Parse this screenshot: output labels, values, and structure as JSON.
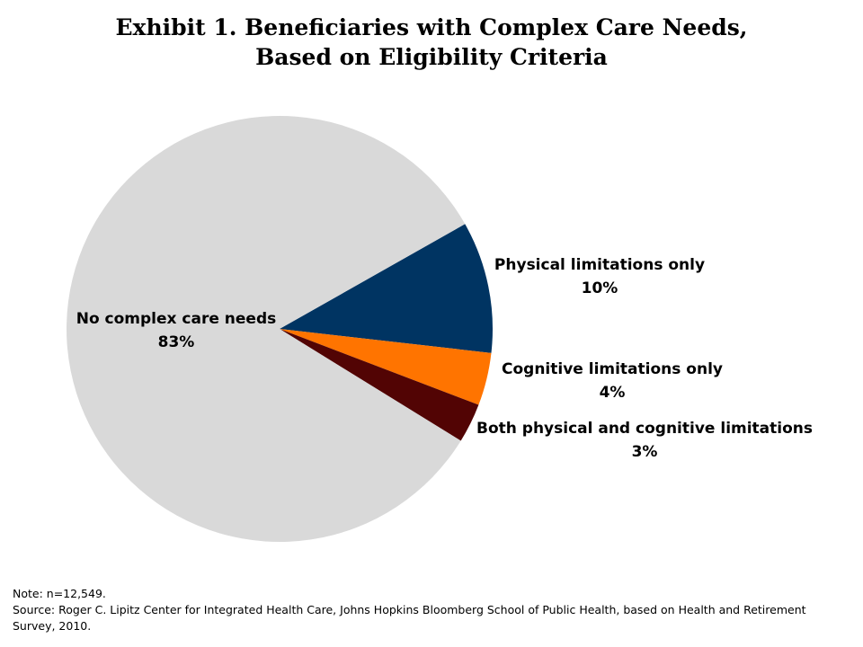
{
  "chart_data": {
    "type": "pie",
    "title": [
      "Exhibit 1. Beneficiaries with Complex Care Needs,",
      "Based on Eligibility Criteria"
    ],
    "slices": [
      {
        "label": "Physical limitations only",
        "value": 10,
        "value_label": "10%",
        "color": "#003462"
      },
      {
        "label": "Cognitive limitations only",
        "value": 4,
        "value_label": "4%",
        "color": "#ff7400"
      },
      {
        "label": "Both physical and cognitive limitations",
        "value": 3,
        "value_label": "3%",
        "color": "#520404"
      },
      {
        "label": "No complex care needs",
        "value": 83,
        "value_label": "83%",
        "color": "#d9d9d9"
      }
    ]
  },
  "notes": {
    "note": "Note: n=12,549.",
    "source": "Source: Roger C. Lipitz Center for Integrated Health Care, Johns Hopkins Bloomberg School of Public Health, based on Health and Retirement Survey, 2010."
  }
}
